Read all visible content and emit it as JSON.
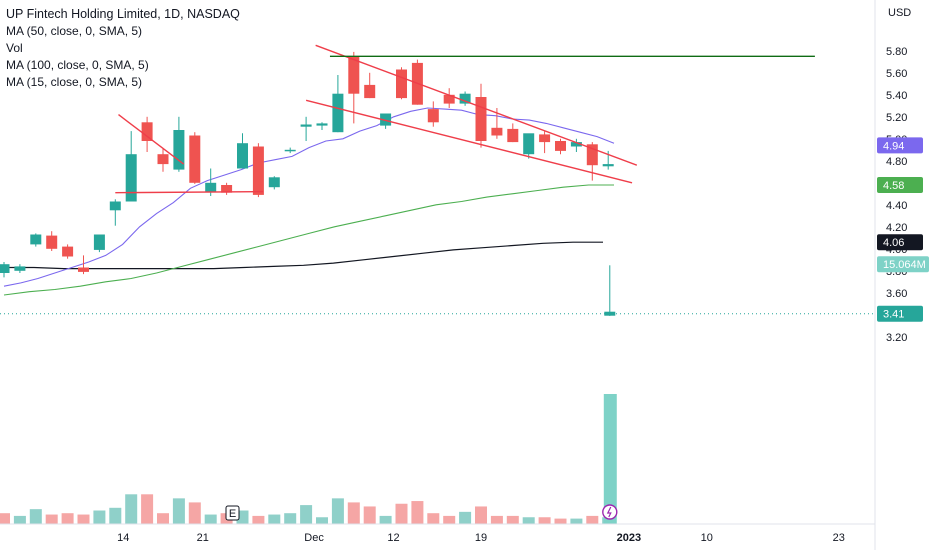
{
  "header": {
    "title": "UP Fintech Holding Limited, 1D, NASDAQ",
    "indicators": [
      "MA (50, close, 0, SMA, 5)",
      "Vol",
      "MA (100, close, 0, SMA, 5)",
      "MA (15, close, 0, SMA, 5)"
    ]
  },
  "axis": {
    "currency": "USD",
    "y_ticks": [
      "5.80",
      "5.60",
      "5.40",
      "5.20",
      "5.00",
      "4.80",
      "4.60",
      "4.40",
      "4.20",
      "4.00",
      "3.80",
      "3.60",
      "3.40",
      "3.20"
    ],
    "x_ticks": [
      "14",
      "21",
      "Dec",
      "12",
      "19",
      "2023",
      "10",
      "23"
    ]
  },
  "badges": {
    "ma15": "4.94",
    "ma50": "4.58",
    "ma100": "4.06",
    "volume": "15.064M",
    "last_price": "3.41"
  },
  "markers": {
    "earnings": "E"
  },
  "colors": {
    "up": "#26a69a",
    "down": "#ef5350",
    "up_volume": "#8fd0c9",
    "down_volume": "#f5a6a5",
    "ma15": "#7b68ee",
    "ma50": "#4caf50",
    "ma100": "#131722",
    "trendline": "#ef3e4a",
    "resistance": "#0f6b14",
    "volume_highlight": "#7ed2c7",
    "events_icon": "#9c27b0"
  },
  "chart_data": {
    "type": "candlestick",
    "y_range": [
      3.15,
      5.95
    ],
    "candles": [
      {
        "o": 3.78,
        "h": 3.88,
        "l": 3.74,
        "c": 3.86
      },
      {
        "o": 3.8,
        "h": 3.86,
        "l": 3.78,
        "c": 3.84
      },
      {
        "o": 4.04,
        "h": 4.14,
        "l": 4.02,
        "c": 4.13
      },
      {
        "o": 4.12,
        "h": 4.16,
        "l": 3.98,
        "c": 4.0
      },
      {
        "o": 4.02,
        "h": 4.04,
        "l": 3.91,
        "c": 3.93
      },
      {
        "o": 3.83,
        "h": 3.94,
        "l": 3.77,
        "c": 3.79
      },
      {
        "o": 3.99,
        "h": 4.13,
        "l": 3.97,
        "c": 4.13
      },
      {
        "o": 4.35,
        "h": 4.45,
        "l": 4.21,
        "c": 4.43
      },
      {
        "o": 4.43,
        "h": 5.07,
        "l": 4.43,
        "c": 4.86
      },
      {
        "o": 5.15,
        "h": 5.2,
        "l": 4.88,
        "c": 4.98
      },
      {
        "o": 4.86,
        "h": 4.91,
        "l": 4.7,
        "c": 4.77
      },
      {
        "o": 4.72,
        "h": 5.2,
        "l": 4.7,
        "c": 5.08
      },
      {
        "o": 5.03,
        "h": 5.06,
        "l": 4.59,
        "c": 4.6
      },
      {
        "o": 4.52,
        "h": 4.73,
        "l": 4.48,
        "c": 4.6
      },
      {
        "o": 4.58,
        "h": 4.6,
        "l": 4.49,
        "c": 4.51
      },
      {
        "o": 4.73,
        "h": 5.05,
        "l": 4.73,
        "c": 4.96
      },
      {
        "o": 4.93,
        "h": 4.96,
        "l": 4.47,
        "c": 4.49
      },
      {
        "o": 4.56,
        "h": 4.66,
        "l": 4.54,
        "c": 4.65
      },
      {
        "o": 4.89,
        "h": 4.92,
        "l": 4.87,
        "c": 4.9
      },
      {
        "o": 5.11,
        "h": 5.2,
        "l": 4.98,
        "c": 5.13
      },
      {
        "o": 5.12,
        "h": 5.15,
        "l": 5.08,
        "c": 5.14
      },
      {
        "o": 5.06,
        "h": 5.58,
        "l": 5.06,
        "c": 5.41
      },
      {
        "o": 5.75,
        "h": 5.79,
        "l": 5.14,
        "c": 5.41
      },
      {
        "o": 5.49,
        "h": 5.6,
        "l": 5.37,
        "c": 5.37
      },
      {
        "o": 5.12,
        "h": 5.22,
        "l": 5.09,
        "c": 5.23
      },
      {
        "o": 5.63,
        "h": 5.65,
        "l": 5.36,
        "c": 5.37
      },
      {
        "o": 5.69,
        "h": 5.72,
        "l": 5.31,
        "c": 5.31
      },
      {
        "o": 5.27,
        "h": 5.34,
        "l": 5.11,
        "c": 5.15
      },
      {
        "o": 5.4,
        "h": 5.46,
        "l": 5.28,
        "c": 5.32
      },
      {
        "o": 5.32,
        "h": 5.43,
        "l": 5.3,
        "c": 5.41
      },
      {
        "o": 5.38,
        "h": 5.5,
        "l": 4.92,
        "c": 4.98
      },
      {
        "o": 5.1,
        "h": 5.28,
        "l": 5.0,
        "c": 5.03
      },
      {
        "o": 5.09,
        "h": 5.14,
        "l": 4.97,
        "c": 4.97
      },
      {
        "o": 4.86,
        "h": 5.03,
        "l": 4.82,
        "c": 5.05
      },
      {
        "o": 5.04,
        "h": 5.07,
        "l": 4.87,
        "c": 4.97
      },
      {
        "o": 4.98,
        "h": 5.0,
        "l": 4.86,
        "c": 4.89
      },
      {
        "o": 4.93,
        "h": 5.0,
        "l": 4.88,
        "c": 4.97
      },
      {
        "o": 4.95,
        "h": 4.97,
        "l": 4.62,
        "c": 4.76
      },
      {
        "o": 4.75,
        "h": 4.89,
        "l": 4.72,
        "c": 4.77
      }
    ],
    "volume": [
      {
        "v": 0.4,
        "up": false
      },
      {
        "v": 0.3,
        "up": true
      },
      {
        "v": 0.55,
        "up": true
      },
      {
        "v": 0.35,
        "up": false
      },
      {
        "v": 0.4,
        "up": false
      },
      {
        "v": 0.35,
        "up": false
      },
      {
        "v": 0.5,
        "up": true
      },
      {
        "v": 0.6,
        "up": true
      },
      {
        "v": 1.1,
        "up": true
      },
      {
        "v": 1.1,
        "up": false
      },
      {
        "v": 0.4,
        "up": false
      },
      {
        "v": 0.95,
        "up": true
      },
      {
        "v": 0.8,
        "up": false
      },
      {
        "v": 0.35,
        "up": true
      },
      {
        "v": 0.4,
        "up": false
      },
      {
        "v": 0.5,
        "up": true
      },
      {
        "v": 0.3,
        "up": false
      },
      {
        "v": 0.35,
        "up": true
      },
      {
        "v": 0.4,
        "up": true
      },
      {
        "v": 0.7,
        "up": true
      },
      {
        "v": 0.25,
        "up": true
      },
      {
        "v": 0.95,
        "up": true
      },
      {
        "v": 0.8,
        "up": false
      },
      {
        "v": 0.65,
        "up": false
      },
      {
        "v": 0.3,
        "up": true
      },
      {
        "v": 0.75,
        "up": false
      },
      {
        "v": 0.85,
        "up": false
      },
      {
        "v": 0.4,
        "up": false
      },
      {
        "v": 0.3,
        "up": false
      },
      {
        "v": 0.45,
        "up": true
      },
      {
        "v": 0.65,
        "up": false
      },
      {
        "v": 0.3,
        "up": false
      },
      {
        "v": 0.3,
        "up": false
      },
      {
        "v": 0.25,
        "up": true
      },
      {
        "v": 0.25,
        "up": false
      },
      {
        "v": 0.2,
        "up": false
      },
      {
        "v": 0.2,
        "up": true
      },
      {
        "v": 0.3,
        "up": false
      },
      {
        "v": 0.25,
        "up": true
      }
    ],
    "ma15": [
      3.66,
      3.69,
      3.73,
      3.78,
      3.83,
      3.88,
      3.94,
      4.04,
      4.2,
      4.32,
      4.42,
      4.55,
      4.62,
      4.67,
      4.72,
      4.78,
      4.81,
      4.84,
      4.92,
      4.98,
      5.0,
      5.07,
      5.12,
      5.2,
      5.25,
      5.28,
      5.27,
      5.26,
      5.22,
      5.21,
      5.18,
      5.17,
      5.14,
      5.1,
      5.06,
      5.02,
      4.96
    ],
    "ma50": [
      3.58,
      3.61,
      3.63,
      3.66,
      3.7,
      3.73,
      3.78,
      3.84,
      3.9,
      3.96,
      4.02,
      4.08,
      4.14,
      4.2,
      4.25,
      4.3,
      4.35,
      4.4,
      4.43,
      4.47,
      4.5,
      4.53,
      4.56,
      4.58,
      4.58
    ],
    "ma100": [
      3.83,
      3.83,
      3.82,
      3.82,
      3.82,
      3.82,
      3.82,
      3.82,
      3.83,
      3.84,
      3.85,
      3.87,
      3.9,
      3.93,
      3.96,
      3.99,
      4.01,
      4.03,
      4.05,
      4.06,
      4.06
    ],
    "trendlines": [
      {
        "from": [
          7.0,
          4.51
        ],
        "to": [
          16.3,
          4.52
        ]
      },
      {
        "from": [
          7.2,
          5.22
        ],
        "to": [
          11.3,
          4.77
        ]
      },
      {
        "from": [
          19.0,
          5.35
        ],
        "to": [
          39.5,
          4.6
        ]
      },
      {
        "from": [
          19.6,
          5.85
        ],
        "to": [
          39.8,
          4.76
        ]
      }
    ],
    "resistance": {
      "y": 5.75,
      "x_from": 20.5,
      "x_to": 51.0
    },
    "last_volume_bar": {
      "open": 3.85,
      "high": 3.85,
      "low": 3.39,
      "close": 3.41
    },
    "last_price_line": 3.41
  }
}
